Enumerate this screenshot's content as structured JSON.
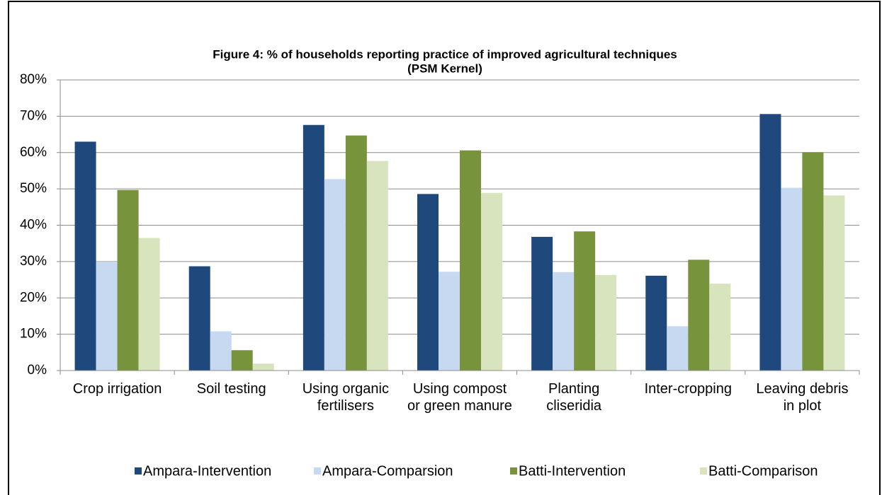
{
  "chart_data": {
    "type": "bar",
    "title": [
      "Figure 4: % of households reporting practice of improved agricultural techniques",
      "(PSM Kernel)"
    ],
    "categories": [
      "Crop irrigation",
      "Soil testing",
      "Using organic fertilisers",
      "Using compost or green manure",
      "Planting cliseridia",
      "Inter-cropping",
      "Leaving debris in plot"
    ],
    "series": [
      {
        "name": "Ampara-Intervention",
        "color": "#1f497d",
        "values": [
          63,
          28.7,
          67.6,
          48.6,
          36.8,
          26.1,
          70.6
        ]
      },
      {
        "name": "Ampara-Comparsion",
        "color": "#c6d9f1",
        "values": [
          30,
          10.8,
          52.7,
          27.2,
          27.1,
          12.2,
          50.3
        ]
      },
      {
        "name": "Batti-Intervention",
        "color": "#77933c",
        "values": [
          49.7,
          5.6,
          64.7,
          60.6,
          38.3,
          30.5,
          60.1
        ]
      },
      {
        "name": "Batti-Comparison",
        "color": "#d7e4bd",
        "values": [
          36.5,
          1.9,
          57.7,
          48.9,
          26.3,
          23.9,
          48.2
        ]
      }
    ],
    "ylim": [
      0,
      80
    ],
    "yticks": [
      {
        "value": 0,
        "label": "0%"
      },
      {
        "value": 10,
        "label": "10%"
      },
      {
        "value": 20,
        "label": "20%"
      },
      {
        "value": 30,
        "label": "30%"
      },
      {
        "value": 40,
        "label": "40%"
      },
      {
        "value": 50,
        "label": "50%"
      },
      {
        "value": 60,
        "label": "60%"
      },
      {
        "value": 70,
        "label": "70%"
      },
      {
        "value": 80,
        "label": "80%"
      }
    ],
    "grid": true,
    "legend": "bottom"
  }
}
